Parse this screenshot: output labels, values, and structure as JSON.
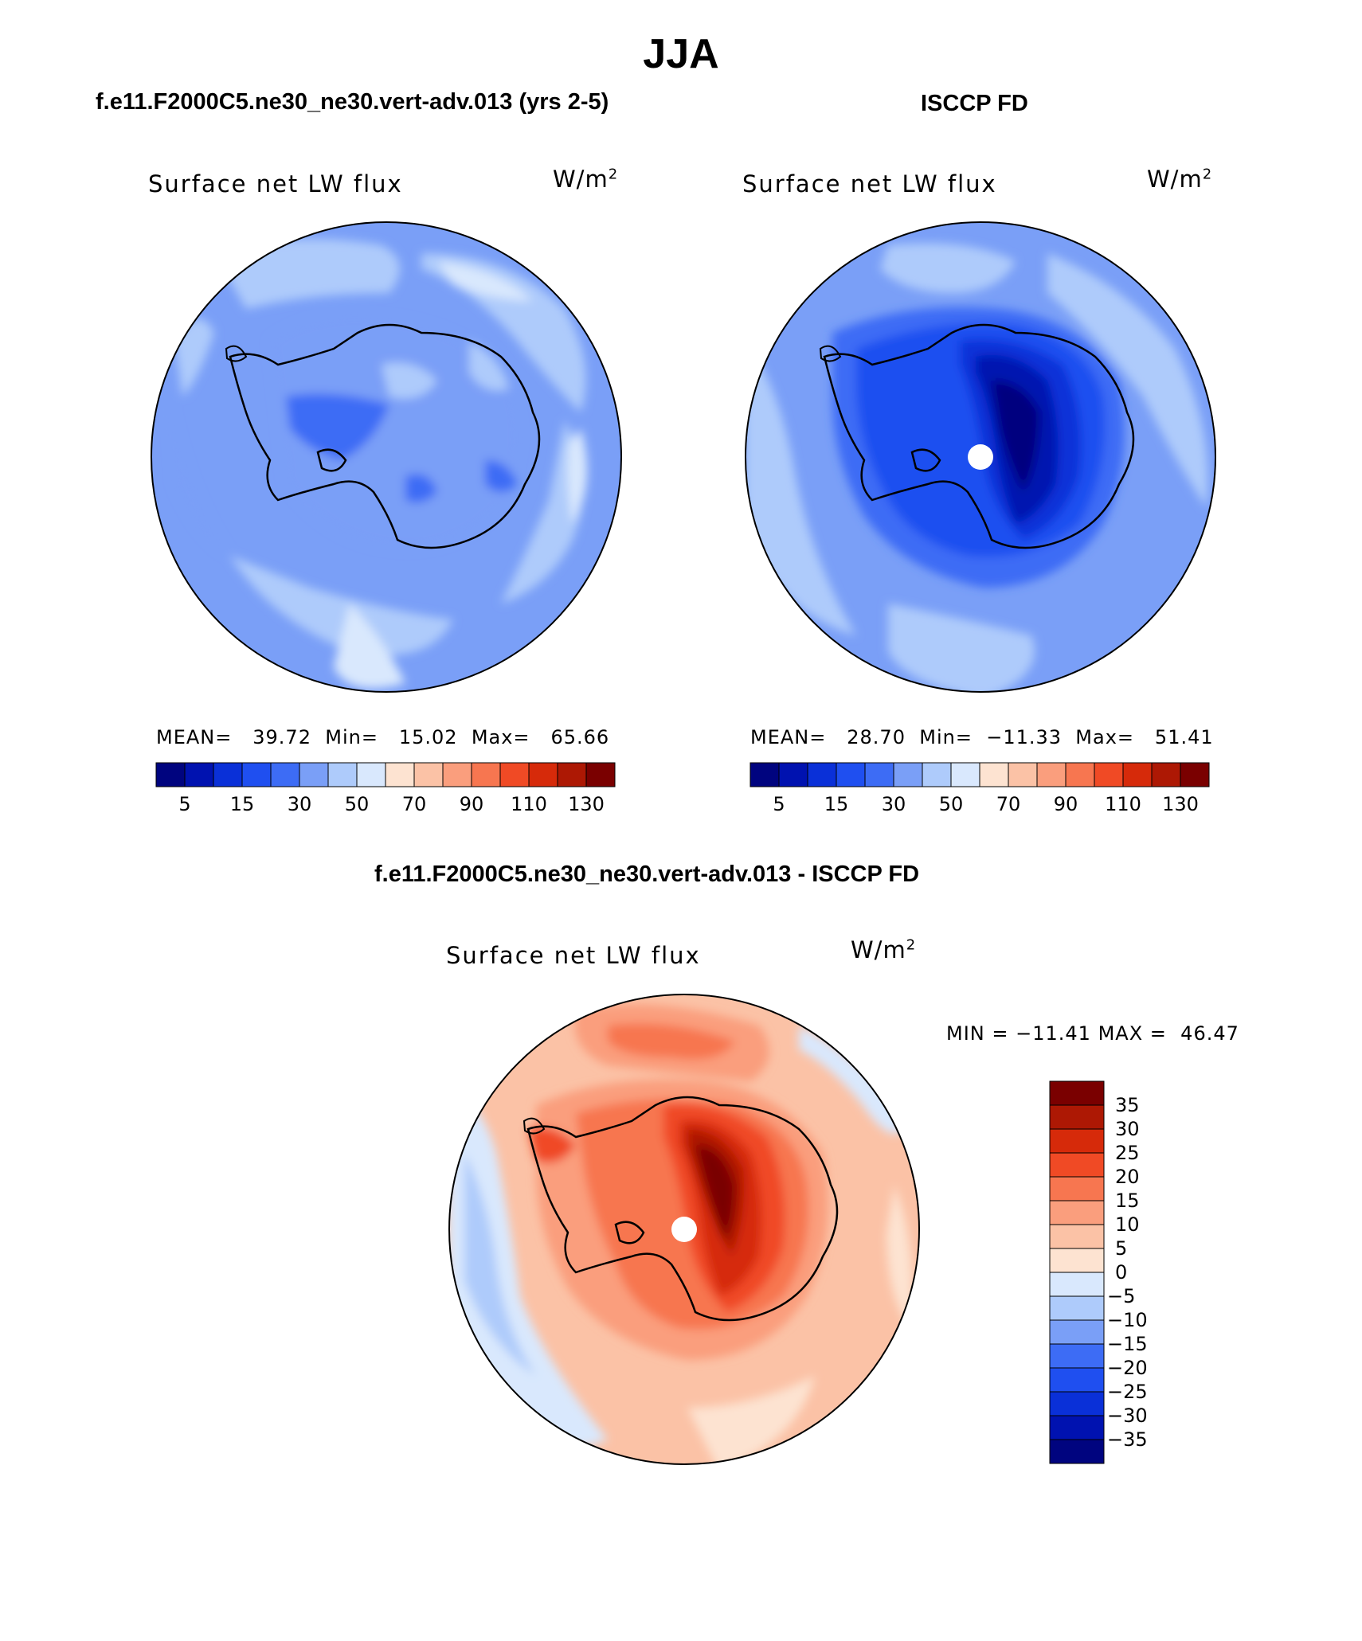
{
  "title": "JJA",
  "panels": [
    {
      "id": "model",
      "header": "f.e11.F2000C5.ne30_ne30.vert-adv.013 (yrs 2-5)",
      "plot_label": "Surface net LW flux",
      "units_base": "W/m",
      "units_exp": "2",
      "stats": {
        "mean_label": "MEAN=",
        "mean": "39.72",
        "min_label": "Min=",
        "min": "15.02",
        "max_label": "Max=",
        "max": "65.66"
      },
      "colorbar_ticks": [
        "5",
        "15",
        "30",
        "50",
        "70",
        "90",
        "110",
        "130"
      ]
    },
    {
      "id": "obs",
      "header": "ISCCP FD",
      "plot_label": "Surface net LW flux",
      "units_base": "W/m",
      "units_exp": "2",
      "stats": {
        "mean_label": "MEAN=",
        "mean": "28.70",
        "min_label": "Min=",
        "min": "−11.33",
        "max_label": "Max=",
        "max": "51.41"
      },
      "colorbar_ticks": [
        "5",
        "15",
        "30",
        "50",
        "70",
        "90",
        "110",
        "130"
      ]
    },
    {
      "id": "diff",
      "header": "f.e11.F2000C5.ne30_ne30.vert-adv.013 - ISCCP FD",
      "plot_label": "Surface net LW flux",
      "units_base": "W/m",
      "units_exp": "2",
      "minmax": {
        "min_label": "MIN =",
        "min": "−11.41",
        "max_label": "MAX =",
        "max": "46.47"
      },
      "colorbar_ticks": [
        "35",
        "30",
        "25",
        "20",
        "15",
        "10",
        "5",
        "0",
        "−5",
        "−10",
        "−15",
        "−20",
        "−25",
        "−30",
        "−35"
      ]
    }
  ],
  "palettes": {
    "abs": [
      "#00047f",
      "#0012b0",
      "#0a30d8",
      "#1f4ff0",
      "#3d6cf5",
      "#7a9ff7",
      "#aecbfb",
      "#d9e8fd",
      "#fde3d1",
      "#fbc2a6",
      "#fa9e7d",
      "#f77650",
      "#f04a25",
      "#d62a0a",
      "#ad1804",
      "#7a0000"
    ],
    "diff": [
      "#7a0000",
      "#ad1804",
      "#d62a0a",
      "#f04a25",
      "#f77650",
      "#fa9e7d",
      "#fbc2a6",
      "#fde3d1",
      "#d9e8fd",
      "#aecbfb",
      "#7a9ff7",
      "#3d6cf5",
      "#1f4ff0",
      "#0a30d8",
      "#0012b0",
      "#00047f"
    ]
  }
}
